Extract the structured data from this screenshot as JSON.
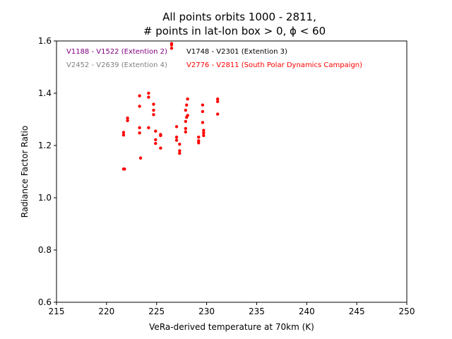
{
  "chart_data": {
    "type": "scatter",
    "title_line1": "All points orbits 1000 - 2811,",
    "title_line2": "# points in lat-lon box > 0, ϕ <  60",
    "xlabel": "VeRa-derived temperature at 70km (K)",
    "ylabel": "Radiance Factor Ratio",
    "xlim": [
      215,
      250
    ],
    "ylim": [
      0.6,
      1.6
    ],
    "xticks": [
      "215",
      "220",
      "225",
      "230",
      "235",
      "240",
      "245",
      "250"
    ],
    "yticks": [
      "0.6",
      "0.8",
      "1.0",
      "1.2",
      "1.4",
      "1.6"
    ],
    "grid": false,
    "legend_entries": [
      {
        "label": "V1188 - V1522 (Extention 2)",
        "color": "#800080"
      },
      {
        "label": "V1748 - V2301 (Extention 3)",
        "color": "#000000"
      },
      {
        "label": "V2452 - V2639 (Extention 4)",
        "color": "#808080"
      },
      {
        "label": "V2776 - V2811 (South Polar Dynamics Campaign)",
        "color": "#ff0000"
      }
    ],
    "series": [
      {
        "color": "#ff0000",
        "points": [
          [
            221.7,
            1.11
          ],
          [
            221.8,
            1.11
          ],
          [
            221.7,
            1.24
          ],
          [
            221.7,
            1.25
          ],
          [
            222.1,
            1.295
          ],
          [
            222.1,
            1.305
          ],
          [
            223.3,
            1.39
          ],
          [
            223.3,
            1.35
          ],
          [
            223.3,
            1.268
          ],
          [
            223.3,
            1.248
          ],
          [
            223.4,
            1.152
          ],
          [
            224.2,
            1.4
          ],
          [
            224.2,
            1.385
          ],
          [
            224.2,
            1.268
          ],
          [
            224.7,
            1.358
          ],
          [
            224.7,
            1.335
          ],
          [
            224.7,
            1.318
          ],
          [
            224.9,
            1.255
          ],
          [
            224.9,
            1.222
          ],
          [
            224.9,
            1.208
          ],
          [
            225.4,
            1.242
          ],
          [
            225.4,
            1.238
          ],
          [
            225.4,
            1.19
          ],
          [
            226.5,
            1.59
          ],
          [
            226.5,
            1.585
          ],
          [
            226.5,
            1.572
          ],
          [
            227.0,
            1.272
          ],
          [
            227.0,
            1.232
          ],
          [
            227.0,
            1.22
          ],
          [
            227.3,
            1.205
          ],
          [
            227.3,
            1.18
          ],
          [
            227.3,
            1.17
          ],
          [
            227.9,
            1.335
          ],
          [
            227.9,
            1.292
          ],
          [
            227.9,
            1.265
          ],
          [
            227.9,
            1.252
          ],
          [
            228.0,
            1.355
          ],
          [
            228.0,
            1.308
          ],
          [
            228.1,
            1.378
          ],
          [
            228.1,
            1.315
          ],
          [
            229.2,
            1.232
          ],
          [
            229.2,
            1.218
          ],
          [
            229.2,
            1.21
          ],
          [
            229.6,
            1.355
          ],
          [
            229.6,
            1.33
          ],
          [
            229.6,
            1.288
          ],
          [
            229.7,
            1.258
          ],
          [
            229.7,
            1.248
          ],
          [
            229.7,
            1.238
          ],
          [
            231.1,
            1.378
          ],
          [
            231.1,
            1.368
          ],
          [
            231.1,
            1.32
          ]
        ]
      }
    ]
  }
}
